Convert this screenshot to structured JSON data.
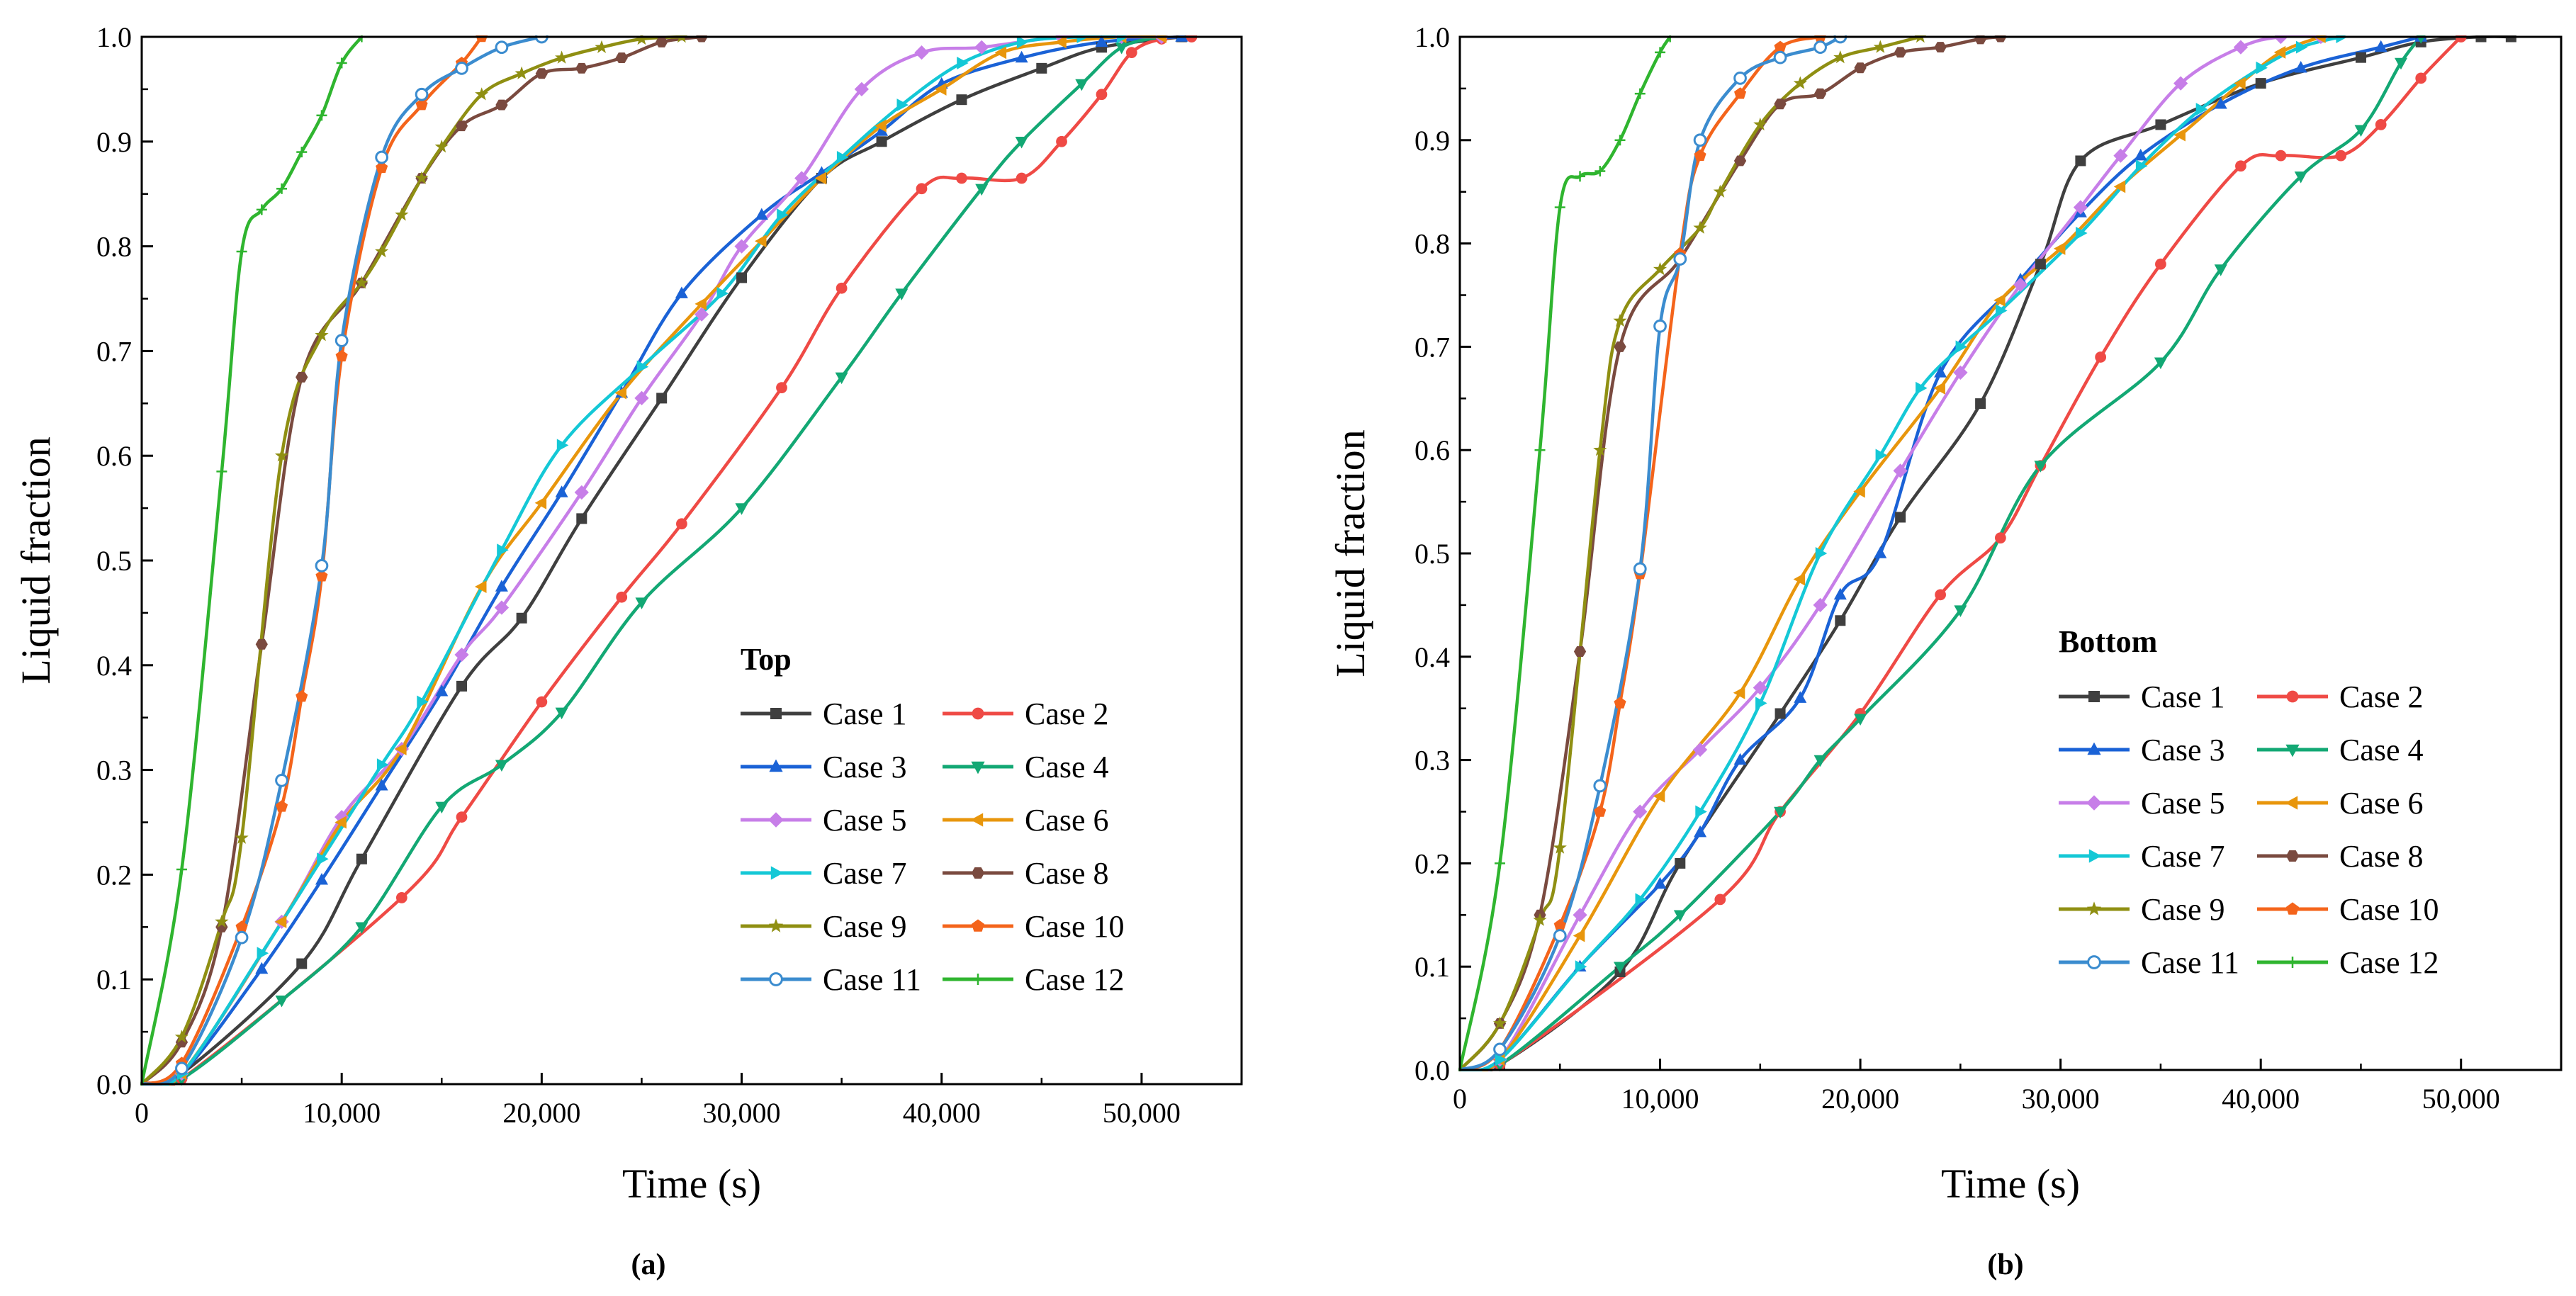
{
  "chart_data": [
    {
      "type": "line",
      "id": "a",
      "panel_label": "(a)",
      "xlabel": "Time (s)",
      "ylabel": "Liquid fraction",
      "xlim": [
        0,
        55000
      ],
      "ylim": [
        0,
        1.0
      ],
      "xticks": [
        0,
        10000,
        20000,
        30000,
        40000,
        50000
      ],
      "xtick_labels": [
        "0",
        "10,000",
        "20,000",
        "30,000",
        "40,000",
        "50,000"
      ],
      "yticks": [
        0,
        0.1,
        0.2,
        0.3,
        0.4,
        0.5,
        0.6,
        0.7,
        0.8,
        0.9,
        1.0
      ],
      "ytick_labels": [
        "0.0",
        "0.1",
        "0.2",
        "0.3",
        "0.4",
        "0.5",
        "0.6",
        "0.7",
        "0.8",
        "0.9",
        "1.0"
      ],
      "legend_title": "Top",
      "legend_position": "bottom-right",
      "series": [
        {
          "name": "Case 1",
          "color": "#3f3f3f",
          "marker": "square",
          "x": [
            0,
            2000,
            8000,
            11000,
            16000,
            19000,
            22000,
            26000,
            30000,
            34000,
            37000,
            41000,
            45000,
            48000,
            52000
          ],
          "y": [
            0,
            0.01,
            0.115,
            0.215,
            0.38,
            0.445,
            0.54,
            0.655,
            0.77,
            0.865,
            0.9,
            0.94,
            0.97,
            0.99,
            1.0
          ]
        },
        {
          "name": "Case 2",
          "color": "#ef4a45",
          "marker": "circle",
          "x": [
            0,
            2000,
            13000,
            16000,
            20000,
            24000,
            27000,
            32000,
            35000,
            39000,
            41000,
            44000,
            46000,
            48000,
            49500,
            51000,
            52500
          ],
          "y": [
            0,
            0.005,
            0.178,
            0.255,
            0.365,
            0.465,
            0.535,
            0.665,
            0.76,
            0.855,
            0.865,
            0.865,
            0.9,
            0.945,
            0.985,
            0.998,
            1.0
          ]
        },
        {
          "name": "Case 3",
          "color": "#1a62d6",
          "marker": "triangle-up",
          "x": [
            0,
            2000,
            6000,
            9000,
            12000,
            15000,
            18000,
            21000,
            24000,
            27000,
            31000,
            34000,
            37000,
            40000,
            44000,
            48000,
            52000
          ],
          "y": [
            0,
            0.01,
            0.11,
            0.195,
            0.285,
            0.375,
            0.475,
            0.565,
            0.66,
            0.755,
            0.83,
            0.87,
            0.91,
            0.955,
            0.98,
            0.995,
            1.0
          ]
        },
        {
          "name": "Case 4",
          "color": "#13a874",
          "marker": "triangle-down",
          "x": [
            0,
            2000,
            7000,
            11000,
            15000,
            18000,
            21000,
            25000,
            30000,
            35000,
            38000,
            42000,
            44000,
            47000,
            49000,
            51000
          ],
          "y": [
            0,
            0.005,
            0.08,
            0.15,
            0.265,
            0.305,
            0.355,
            0.46,
            0.55,
            0.675,
            0.755,
            0.855,
            0.9,
            0.955,
            0.99,
            1.0
          ]
        },
        {
          "name": "Case 5",
          "color": "#c77ee8",
          "marker": "diamond",
          "x": [
            0,
            2000,
            7000,
            10000,
            13000,
            16000,
            18000,
            22000,
            25000,
            28000,
            30000,
            33000,
            36000,
            39000,
            42000,
            46000,
            49000,
            51000
          ],
          "y": [
            0,
            0.01,
            0.155,
            0.255,
            0.32,
            0.41,
            0.455,
            0.565,
            0.655,
            0.735,
            0.8,
            0.865,
            0.95,
            0.985,
            0.99,
            1.0,
            1.0,
            1.0
          ]
        },
        {
          "name": "Case 6",
          "color": "#e8960c",
          "marker": "triangle-left",
          "x": [
            0,
            2000,
            7000,
            10000,
            13000,
            17000,
            20000,
            24000,
            28000,
            31000,
            34000,
            37000,
            40000,
            43000,
            46000,
            49000,
            51000
          ],
          "y": [
            0,
            0.01,
            0.155,
            0.25,
            0.32,
            0.475,
            0.555,
            0.66,
            0.745,
            0.805,
            0.865,
            0.915,
            0.95,
            0.985,
            0.995,
            1.0,
            1.0
          ]
        },
        {
          "name": "Case 7",
          "color": "#14c8d6",
          "marker": "triangle-right",
          "x": [
            0,
            2000,
            6000,
            9000,
            12000,
            14000,
            18000,
            21000,
            25000,
            29000,
            32000,
            35000,
            38000,
            41000,
            44000,
            47000,
            49000
          ],
          "y": [
            0,
            0.01,
            0.125,
            0.215,
            0.305,
            0.365,
            0.51,
            0.61,
            0.685,
            0.755,
            0.83,
            0.885,
            0.935,
            0.975,
            0.995,
            1.0,
            1.0
          ]
        },
        {
          "name": "Case 8",
          "color": "#7a4a3f",
          "marker": "hexagon",
          "x": [
            0,
            2000,
            4000,
            6000,
            8000,
            11000,
            14000,
            16000,
            18000,
            20000,
            22000,
            24000,
            26000,
            28000
          ],
          "y": [
            0,
            0.04,
            0.15,
            0.42,
            0.675,
            0.765,
            0.865,
            0.915,
            0.935,
            0.965,
            0.97,
            0.98,
            0.995,
            1.0
          ]
        },
        {
          "name": "Case 9",
          "color": "#8f8f12",
          "marker": "star",
          "x": [
            0,
            2000,
            4000,
            5000,
            7000,
            9000,
            11000,
            12000,
            13000,
            14000,
            15000,
            17000,
            19000,
            21000,
            23000,
            25000,
            27000
          ],
          "y": [
            0,
            0.045,
            0.155,
            0.235,
            0.6,
            0.715,
            0.765,
            0.795,
            0.83,
            0.865,
            0.895,
            0.945,
            0.965,
            0.98,
            0.99,
            0.998,
            1.0
          ]
        },
        {
          "name": "Case 10",
          "color": "#f4641b",
          "marker": "pentagon",
          "x": [
            0,
            2000,
            5000,
            7000,
            8000,
            9000,
            10000,
            12000,
            14000,
            16000,
            17000
          ],
          "y": [
            0,
            0.02,
            0.15,
            0.265,
            0.37,
            0.485,
            0.695,
            0.875,
            0.935,
            0.975,
            1.0
          ]
        },
        {
          "name": "Case 11",
          "color": "#3b8ccf",
          "marker": "circle-open",
          "x": [
            0,
            2000,
            5000,
            7000,
            9000,
            10000,
            12000,
            14000,
            16000,
            18000,
            20000
          ],
          "y": [
            0,
            0.015,
            0.14,
            0.29,
            0.495,
            0.71,
            0.885,
            0.945,
            0.97,
            0.99,
            1.0
          ]
        },
        {
          "name": "Case 12",
          "color": "#2fb52f",
          "marker": "plus",
          "x": [
            0,
            2000,
            4000,
            5000,
            6000,
            7000,
            8000,
            9000,
            10000,
            11000
          ],
          "y": [
            0,
            0.205,
            0.585,
            0.795,
            0.835,
            0.855,
            0.89,
            0.925,
            0.975,
            1.0
          ]
        }
      ]
    },
    {
      "type": "line",
      "id": "b",
      "panel_label": "(b)",
      "xlabel": "Time (s)",
      "ylabel": "Liquid fraction",
      "xlim": [
        0,
        55000
      ],
      "ylim": [
        0,
        1.0
      ],
      "xticks": [
        0,
        10000,
        20000,
        30000,
        40000,
        50000
      ],
      "xtick_labels": [
        "0",
        "10,000",
        "20,000",
        "30,000",
        "40,000",
        "50,000"
      ],
      "yticks": [
        0,
        0.1,
        0.2,
        0.3,
        0.4,
        0.5,
        0.6,
        0.7,
        0.8,
        0.9,
        1.0
      ],
      "ytick_labels": [
        "0.0",
        "0.1",
        "0.2",
        "0.3",
        "0.4",
        "0.5",
        "0.6",
        "0.7",
        "0.8",
        "0.9",
        "1.0"
      ],
      "legend_title": "Bottom",
      "legend_position": "bottom-right",
      "series": [
        {
          "name": "Case 1",
          "color": "#3f3f3f",
          "marker": "square",
          "x": [
            0,
            2000,
            8000,
            11000,
            16000,
            19000,
            22000,
            26000,
            29000,
            31000,
            35000,
            40000,
            45000,
            48000,
            51000,
            52500
          ],
          "y": [
            0,
            0.005,
            0.095,
            0.2,
            0.345,
            0.435,
            0.535,
            0.645,
            0.78,
            0.88,
            0.915,
            0.955,
            0.98,
            0.995,
            1.0,
            1.0
          ]
        },
        {
          "name": "Case 2",
          "color": "#ef4a45",
          "marker": "circle",
          "x": [
            0,
            2000,
            13000,
            16000,
            20000,
            24000,
            27000,
            29000,
            32000,
            35000,
            39000,
            41000,
            44000,
            46000,
            48000,
            50000
          ],
          "y": [
            0,
            0.005,
            0.165,
            0.25,
            0.345,
            0.46,
            0.515,
            0.585,
            0.69,
            0.78,
            0.875,
            0.885,
            0.885,
            0.915,
            0.96,
            1.0
          ]
        },
        {
          "name": "Case 3",
          "color": "#1a62d6",
          "marker": "triangle-up",
          "x": [
            0,
            2000,
            6000,
            10000,
            12000,
            14000,
            17000,
            19000,
            21000,
            24000,
            28000,
            31000,
            34000,
            38000,
            42000,
            46000,
            48000
          ],
          "y": [
            0,
            0.01,
            0.1,
            0.18,
            0.23,
            0.3,
            0.36,
            0.46,
            0.5,
            0.675,
            0.765,
            0.83,
            0.885,
            0.935,
            0.97,
            0.99,
            1.0
          ]
        },
        {
          "name": "Case 4",
          "color": "#13a874",
          "marker": "triangle-down",
          "x": [
            0,
            2000,
            8000,
            11000,
            16000,
            18000,
            20000,
            25000,
            29000,
            35000,
            38000,
            42000,
            45000,
            47000,
            48000
          ],
          "y": [
            0,
            0.005,
            0.1,
            0.15,
            0.25,
            0.3,
            0.34,
            0.445,
            0.585,
            0.685,
            0.775,
            0.865,
            0.91,
            0.975,
            1.0
          ]
        },
        {
          "name": "Case 5",
          "color": "#c77ee8",
          "marker": "diamond",
          "x": [
            0,
            2000,
            6000,
            9000,
            12000,
            15000,
            18000,
            22000,
            25000,
            28000,
            31000,
            33000,
            36000,
            39000,
            41000,
            43000
          ],
          "y": [
            0,
            0.01,
            0.15,
            0.25,
            0.31,
            0.37,
            0.45,
            0.58,
            0.675,
            0.76,
            0.835,
            0.885,
            0.955,
            0.99,
            1.0,
            1.0
          ]
        },
        {
          "name": "Case 6",
          "color": "#e8960c",
          "marker": "triangle-left",
          "x": [
            0,
            2000,
            6000,
            10000,
            14000,
            17000,
            20000,
            24000,
            27000,
            30000,
            33000,
            36000,
            39000,
            41000,
            43000
          ],
          "y": [
            0,
            0.01,
            0.13,
            0.265,
            0.365,
            0.475,
            0.56,
            0.66,
            0.745,
            0.795,
            0.855,
            0.905,
            0.955,
            0.985,
            1.0
          ]
        },
        {
          "name": "Case 7",
          "color": "#14c8d6",
          "marker": "triangle-right",
          "x": [
            0,
            2000,
            6000,
            9000,
            12000,
            15000,
            18000,
            21000,
            23000,
            25000,
            27000,
            31000,
            34000,
            37000,
            40000,
            42000,
            44000
          ],
          "y": [
            0,
            0.01,
            0.1,
            0.165,
            0.25,
            0.355,
            0.5,
            0.595,
            0.66,
            0.7,
            0.735,
            0.81,
            0.875,
            0.93,
            0.97,
            0.99,
            1.0
          ]
        },
        {
          "name": "Case 8",
          "color": "#7a4a3f",
          "marker": "hexagon",
          "x": [
            0,
            2000,
            4000,
            6000,
            8000,
            11000,
            14000,
            16000,
            18000,
            20000,
            22000,
            24000,
            26000,
            27000
          ],
          "y": [
            0,
            0.045,
            0.15,
            0.405,
            0.7,
            0.785,
            0.88,
            0.935,
            0.945,
            0.97,
            0.985,
            0.99,
            0.998,
            1.0
          ]
        },
        {
          "name": "Case 9",
          "color": "#8f8f12",
          "marker": "star",
          "x": [
            0,
            2000,
            4000,
            5000,
            7000,
            8000,
            10000,
            12000,
            13000,
            15000,
            17000,
            19000,
            21000,
            23000
          ],
          "y": [
            0,
            0.045,
            0.145,
            0.215,
            0.6,
            0.725,
            0.775,
            0.815,
            0.85,
            0.915,
            0.955,
            0.98,
            0.99,
            1.0
          ]
        },
        {
          "name": "Case 10",
          "color": "#f4641b",
          "marker": "pentagon",
          "x": [
            0,
            2000,
            5000,
            7000,
            8000,
            9000,
            11000,
            12000,
            14000,
            16000,
            18000
          ],
          "y": [
            0,
            0.02,
            0.14,
            0.25,
            0.355,
            0.48,
            0.79,
            0.885,
            0.945,
            0.99,
            1.0
          ]
        },
        {
          "name": "Case 11",
          "color": "#3b8ccf",
          "marker": "circle-open",
          "x": [
            0,
            2000,
            5000,
            7000,
            9000,
            10000,
            11000,
            12000,
            14000,
            16000,
            18000,
            19000
          ],
          "y": [
            0,
            0.02,
            0.13,
            0.275,
            0.485,
            0.72,
            0.785,
            0.9,
            0.96,
            0.98,
            0.99,
            1.0
          ]
        },
        {
          "name": "Case 12",
          "color": "#2fb52f",
          "marker": "plus",
          "x": [
            0,
            2000,
            4000,
            5000,
            6000,
            7000,
            8000,
            9000,
            10000,
            10500
          ],
          "y": [
            0,
            0.2,
            0.6,
            0.835,
            0.865,
            0.87,
            0.9,
            0.945,
            0.985,
            1.0
          ]
        }
      ]
    }
  ]
}
